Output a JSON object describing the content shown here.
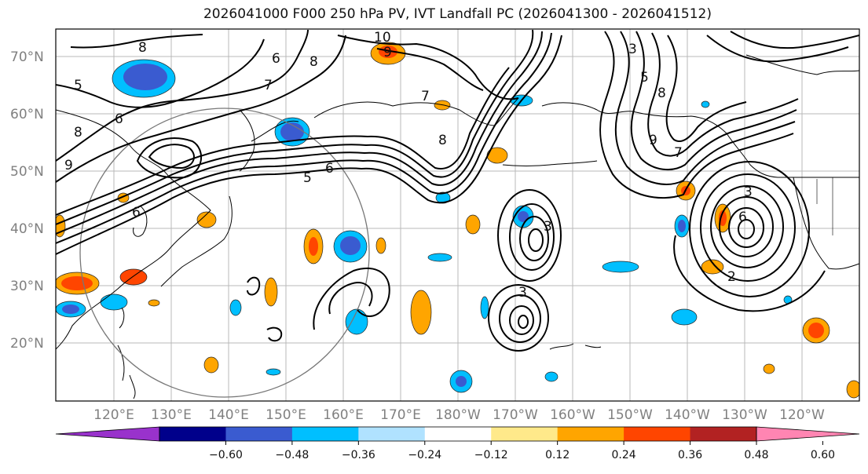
{
  "title": "2026041000 F000 250 hPa PV, IVT Landfall PC (2026041300 - 2026041512)",
  "lat_labels": [
    "20°N",
    "30°N",
    "40°N",
    "50°N",
    "60°N",
    "70°N"
  ],
  "lon_labels": [
    "120°E",
    "130°E",
    "140°E",
    "150°E",
    "160°E",
    "170°E",
    "180°W",
    "170°W",
    "160°W",
    "150°W",
    "140°W",
    "130°W",
    "120°W"
  ],
  "contour_labels": [
    "10",
    "9",
    "8",
    "8",
    "7",
    "6",
    "5",
    "6",
    "8",
    "9",
    "7",
    "6",
    "5",
    "3",
    "8",
    "7",
    "6",
    "3",
    "5",
    "3",
    "6",
    "8",
    "9",
    "3",
    "2"
  ],
  "colorbar": {
    "ticks": [
      "−0.60",
      "−0.48",
      "−0.36",
      "−0.24",
      "−0.12",
      "0.12",
      "0.24",
      "0.36",
      "0.48",
      "0.60"
    ],
    "colors": [
      "#9932cc",
      "#00008b",
      "#3a5bd0",
      "#00bfff",
      "#b0e2ff",
      "#ffffff",
      "#ffe98a",
      "#ffa500",
      "#ff4500",
      "#b22222",
      "#ff85b2"
    ]
  },
  "colors": {
    "negative_strong": "#3a5bd0",
    "negative": "#00bfff",
    "positive": "#ffa500",
    "positive_strong": "#ff4500"
  }
}
